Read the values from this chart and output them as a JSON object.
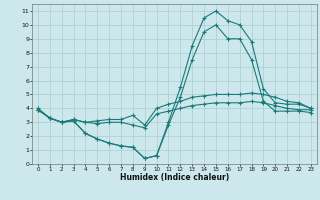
{
  "title": "",
  "xlabel": "Humidex (Indice chaleur)",
  "bg_color": "#cce8ec",
  "grid_color": "#aacccc",
  "line_color": "#1a7a7a",
  "xlim": [
    -0.5,
    23.5
  ],
  "ylim": [
    0,
    11.5
  ],
  "xticks": [
    0,
    1,
    2,
    3,
    4,
    5,
    6,
    7,
    8,
    9,
    10,
    11,
    12,
    13,
    14,
    15,
    16,
    17,
    18,
    19,
    20,
    21,
    22,
    23
  ],
  "yticks": [
    0,
    1,
    2,
    3,
    4,
    5,
    6,
    7,
    8,
    9,
    10,
    11
  ],
  "line1_x": [
    0,
    1,
    2,
    3,
    4,
    5,
    6,
    7,
    8,
    9,
    10,
    11,
    12,
    13,
    14,
    15,
    16,
    17,
    18,
    19,
    20,
    21,
    22,
    23
  ],
  "line1_y": [
    4.0,
    3.3,
    3.0,
    3.2,
    3.0,
    3.1,
    3.2,
    3.2,
    3.5,
    2.8,
    4.0,
    4.3,
    4.5,
    4.8,
    4.9,
    5.0,
    5.0,
    5.0,
    5.1,
    5.0,
    4.8,
    4.5,
    4.4,
    4.0
  ],
  "line2_x": [
    0,
    1,
    2,
    3,
    4,
    5,
    6,
    7,
    8,
    9,
    10,
    11,
    12,
    13,
    14,
    15,
    16,
    17,
    18,
    19,
    20,
    21,
    22,
    23
  ],
  "line2_y": [
    3.9,
    3.3,
    3.0,
    3.1,
    2.2,
    1.8,
    1.5,
    1.3,
    1.2,
    0.4,
    0.6,
    3.0,
    5.5,
    8.5,
    10.5,
    11.0,
    10.3,
    10.0,
    8.8,
    5.4,
    4.4,
    4.3,
    4.3,
    4.0
  ],
  "line3_x": [
    0,
    1,
    2,
    3,
    4,
    5,
    6,
    7,
    8,
    9,
    10,
    11,
    12,
    13,
    14,
    15,
    16,
    17,
    18,
    19,
    20,
    21,
    22,
    23
  ],
  "line3_y": [
    3.9,
    3.3,
    3.0,
    3.1,
    2.2,
    1.8,
    1.5,
    1.3,
    1.2,
    0.4,
    0.6,
    2.8,
    4.8,
    7.5,
    9.5,
    10.0,
    9.0,
    9.0,
    7.5,
    4.5,
    3.8,
    3.8,
    3.8,
    3.7
  ],
  "line4_x": [
    0,
    1,
    2,
    3,
    4,
    5,
    6,
    7,
    8,
    9,
    10,
    11,
    12,
    13,
    14,
    15,
    16,
    17,
    18,
    19,
    20,
    21,
    22,
    23
  ],
  "line4_y": [
    3.9,
    3.3,
    3.0,
    3.2,
    3.0,
    2.9,
    3.0,
    3.0,
    2.8,
    2.6,
    3.6,
    3.8,
    4.0,
    4.2,
    4.3,
    4.4,
    4.4,
    4.4,
    4.5,
    4.4,
    4.2,
    4.0,
    3.9,
    3.9
  ]
}
